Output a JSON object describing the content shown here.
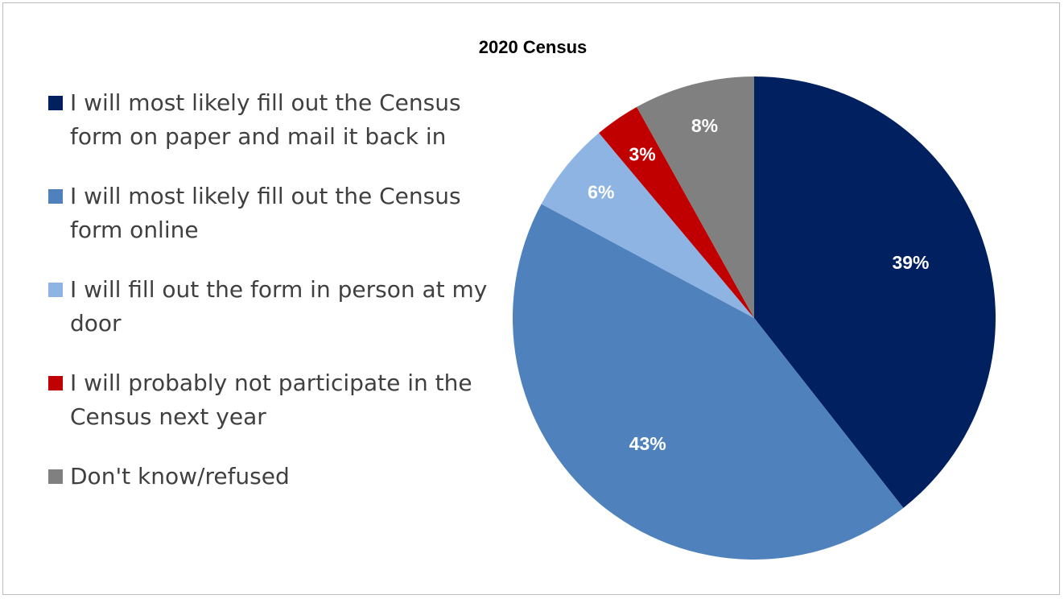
{
  "chart_data": {
    "type": "pie",
    "title": "2020 Census",
    "legend_position": "left",
    "slices": [
      {
        "label": "I will most likely fill out the Census form on paper and mail it back in",
        "value": 39,
        "display": "39%",
        "color": "#002060"
      },
      {
        "label": "I will most likely fill out the Census form online",
        "value": 43,
        "display": "43%",
        "color": "#4f81bd"
      },
      {
        "label": "I will fill out the form in person at my door",
        "value": 6,
        "display": "6%",
        "color": "#8eb4e3"
      },
      {
        "label": "I will probably not participate in the Census next year",
        "value": 3,
        "display": "3%",
        "color": "#c00000"
      },
      {
        "label": "Don't know/refused",
        "value": 8,
        "display": "8%",
        "color": "#808080"
      }
    ]
  }
}
